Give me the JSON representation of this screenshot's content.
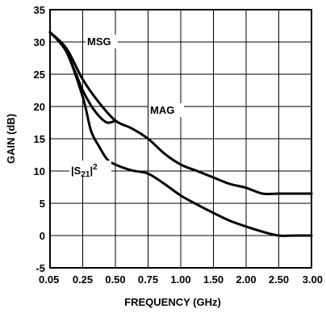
{
  "chart_data": {
    "type": "line",
    "title": "",
    "xlabel": "FREQUENCY (GHz)",
    "ylabel": "GAIN (dB)",
    "x_tick_labels": [
      "0.05",
      "0.25",
      "0.50",
      "0.75",
      "1.00",
      "1.50",
      "2.00",
      "2.50",
      "3.00"
    ],
    "y_ticks": [
      -5,
      0,
      5,
      10,
      15,
      20,
      25,
      30,
      35
    ],
    "ylim": [
      -5,
      35
    ],
    "grid": true,
    "line_color": "#000000",
    "series": [
      {
        "name": "MAG",
        "label_parts": [
          "MAG"
        ],
        "x_index": [
          0,
          0.5,
          1,
          1.5,
          2,
          2.5,
          3,
          3.5,
          4,
          4.5,
          5,
          5.5,
          6,
          6.5,
          7,
          7.5,
          8
        ],
        "y": [
          31.5,
          29,
          24.2,
          20.6,
          17.8,
          16.6,
          15,
          12.7,
          11,
          10,
          9,
          8,
          7.4,
          6.5,
          6.5,
          6.5,
          6.5
        ]
      },
      {
        "name": "MSG",
        "label_parts": [
          "MSG"
        ],
        "x_index": [
          0,
          0.25,
          0.5,
          0.75,
          1,
          1.25,
          1.5,
          1.75,
          2
        ],
        "y": [
          31.5,
          30.2,
          28.5,
          25.6,
          22.5,
          20.2,
          18.5,
          17.5,
          17.8
        ]
      },
      {
        "name": "|S21|^2",
        "label_parts": [
          "|S",
          "21",
          "|",
          "2"
        ],
        "x_index": [
          0,
          0.5,
          1,
          1.25,
          1.5,
          1.75,
          2,
          2.5,
          3,
          3.5,
          4,
          4.5,
          5,
          5.5,
          6,
          6.5,
          7,
          7.5,
          8
        ],
        "y": [
          31.5,
          28.5,
          21.5,
          16.3,
          13.8,
          11.8,
          11,
          10.1,
          9.6,
          8,
          6.2,
          4.8,
          3.5,
          2.3,
          1.4,
          0.6,
          0,
          0,
          0
        ]
      }
    ]
  }
}
